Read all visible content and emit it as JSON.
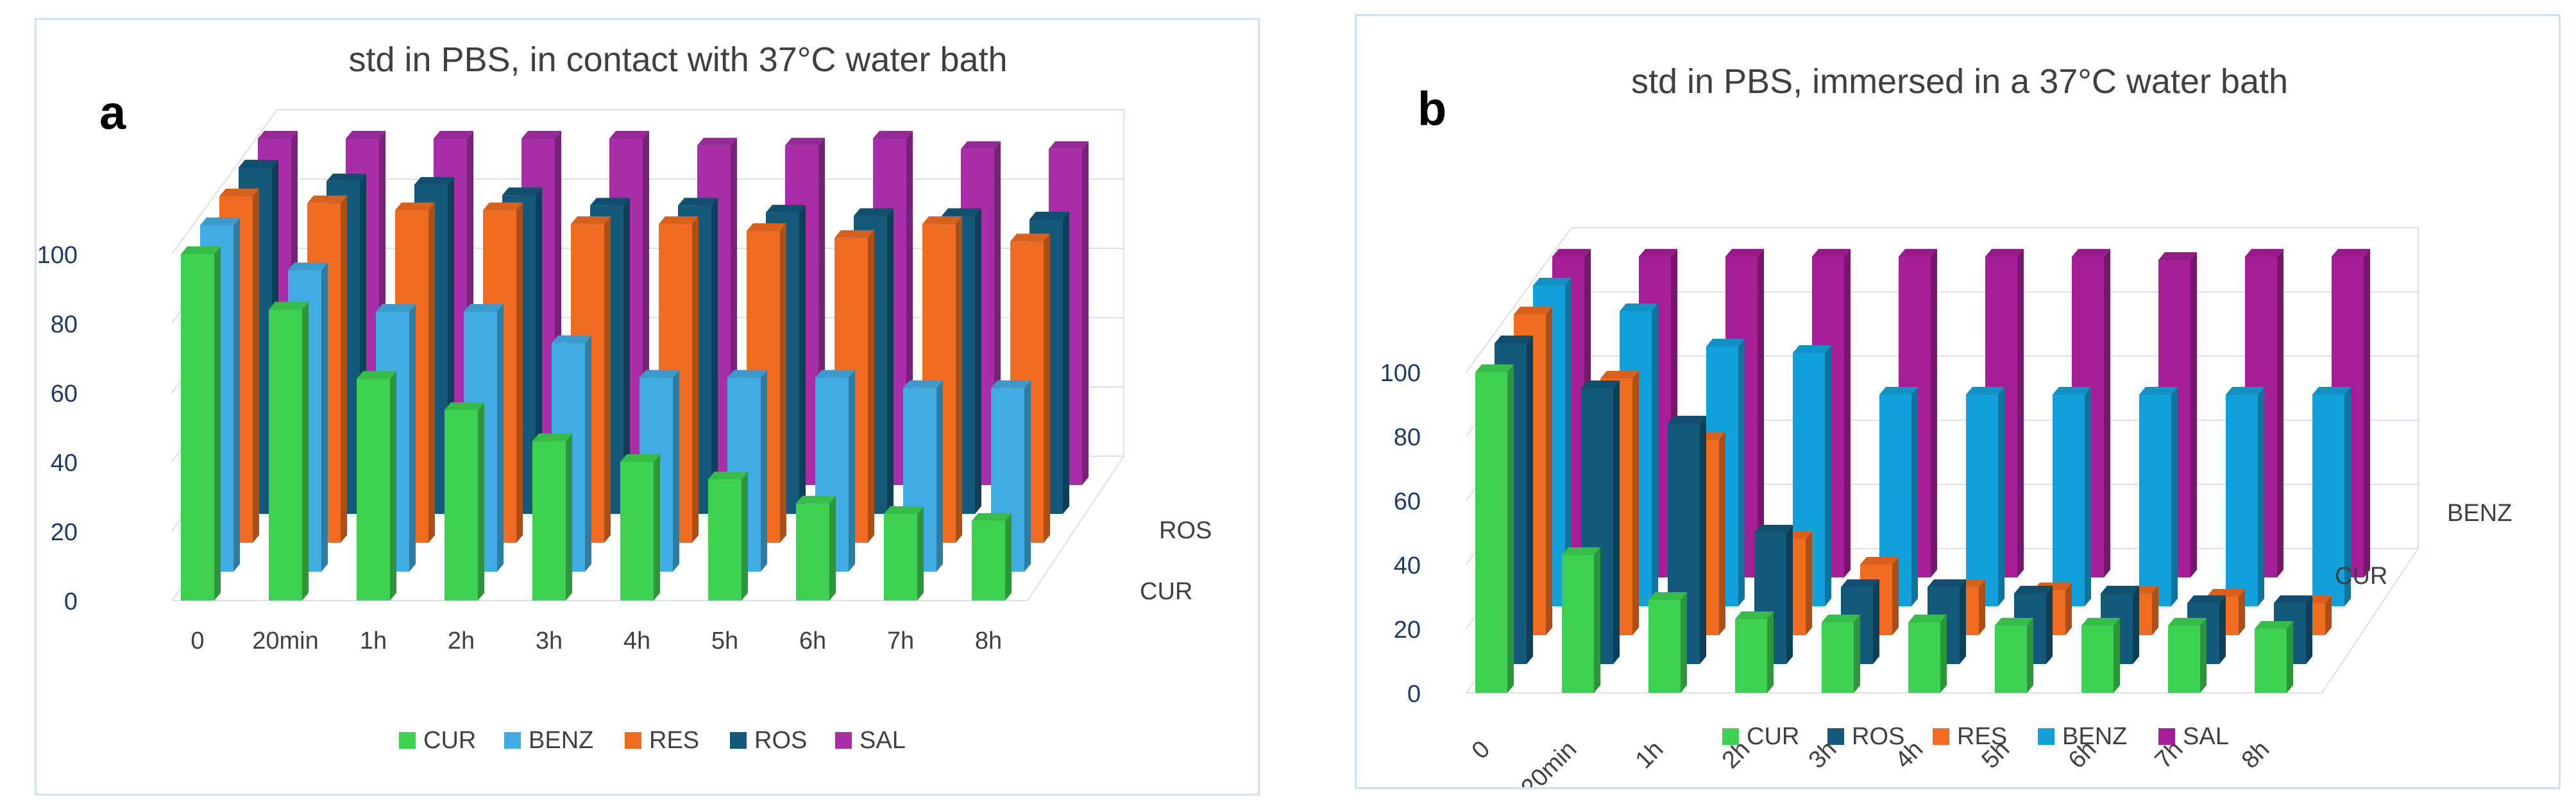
{
  "charts": [
    {
      "panel_label": "a",
      "title": "std in PBS, in contact with 37°C water bath",
      "type": "bar3d",
      "categories": [
        "0",
        "20min",
        "1h",
        "2h",
        "3h",
        "4h",
        "5h",
        "6h",
        "7h",
        "8h"
      ],
      "ylim": [
        0,
        100
      ],
      "y_ticks": [
        "0",
        "20",
        "40",
        "60",
        "80",
        "100"
      ],
      "depth_labels": [
        "CUR",
        "ROS"
      ],
      "series": [
        {
          "name": "CUR",
          "color": "#3ed151",
          "values": [
            100,
            84,
            64,
            55,
            46,
            40,
            35,
            28,
            25,
            23
          ]
        },
        {
          "name": "BENZ",
          "color": "#41ace3",
          "values": [
            100,
            87,
            75,
            75,
            66,
            56,
            56,
            56,
            53,
            53
          ]
        },
        {
          "name": "RES",
          "color": "#f06c22",
          "values": [
            100,
            98,
            96,
            96,
            92,
            92,
            90,
            88,
            92,
            87
          ]
        },
        {
          "name": "ROS",
          "color": "#14587a",
          "values": [
            100,
            96,
            95,
            92,
            89,
            89,
            87,
            86,
            86,
            85
          ]
        },
        {
          "name": "SAL",
          "color": "#a82ea7",
          "values": [
            100,
            100,
            100,
            100,
            100,
            98,
            98,
            100,
            97,
            97
          ]
        }
      ]
    },
    {
      "panel_label": "b",
      "title": "std in PBS, immersed in a 37°C water bath",
      "type": "bar3d",
      "categories": [
        "0",
        "20min",
        "1h",
        "2h",
        "3h",
        "4h",
        "5h",
        "6h",
        "7h",
        "8h"
      ],
      "ylim": [
        0,
        100
      ],
      "y_ticks": [
        "0",
        "20",
        "40",
        "60",
        "80",
        "100"
      ],
      "depth_labels": [
        "CUR",
        "BENZ"
      ],
      "series": [
        {
          "name": "CUR",
          "color": "#3ed151",
          "values": [
            100,
            43,
            29,
            23,
            22,
            22,
            21,
            21,
            21,
            20
          ]
        },
        {
          "name": "ROS",
          "color": "#14587a",
          "values": [
            100,
            86,
            75,
            41,
            24,
            24,
            22,
            22,
            19,
            19
          ]
        },
        {
          "name": "RES",
          "color": "#f06c22",
          "values": [
            100,
            80,
            61,
            30,
            22,
            15,
            14,
            13,
            12,
            10
          ]
        },
        {
          "name": "BENZ",
          "color": "#13a1dc",
          "values": [
            100,
            92,
            81,
            79,
            66,
            66,
            66,
            66,
            66,
            66
          ]
        },
        {
          "name": "SAL",
          "color": "#a61f99",
          "values": [
            100,
            100,
            100,
            100,
            100,
            100,
            100,
            99,
            100,
            100
          ]
        }
      ]
    }
  ]
}
